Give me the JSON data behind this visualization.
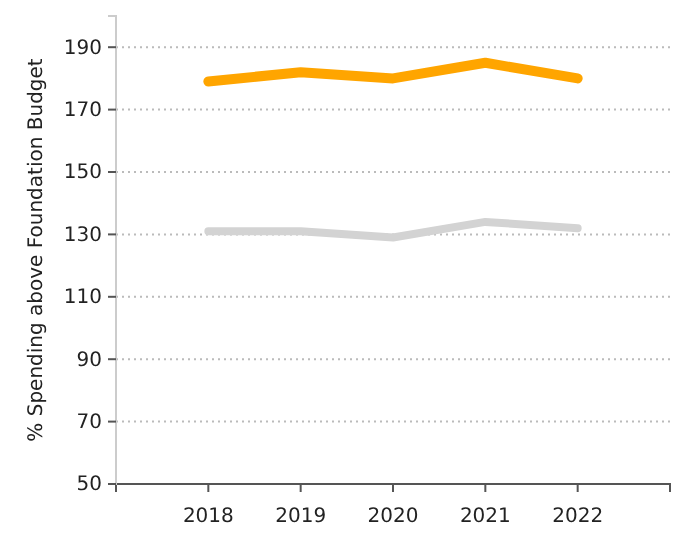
{
  "chart_data": {
    "type": "line",
    "ylabel": "% Spending above Foundation Budget",
    "x": [
      2018,
      2019,
      2020,
      2021,
      2022
    ],
    "series": [
      {
        "color": "#ffa500",
        "values": [
          179,
          182,
          180,
          185,
          180
        ]
      },
      {
        "color": "#d3d3d3",
        "values": [
          131,
          131,
          129,
          134,
          132
        ]
      }
    ],
    "xlim": [
      2017,
      2023
    ],
    "xticks": [
      {
        "value": 2017,
        "label": null
      },
      2018,
      2019,
      2020,
      2021,
      2022,
      {
        "value": 2023,
        "label": null
      }
    ],
    "ylim": [
      50,
      200
    ],
    "yticks": [
      50,
      70,
      90,
      110,
      130,
      150,
      170,
      190
    ],
    "grid": "y",
    "marker": "none",
    "line_style": "solid"
  }
}
